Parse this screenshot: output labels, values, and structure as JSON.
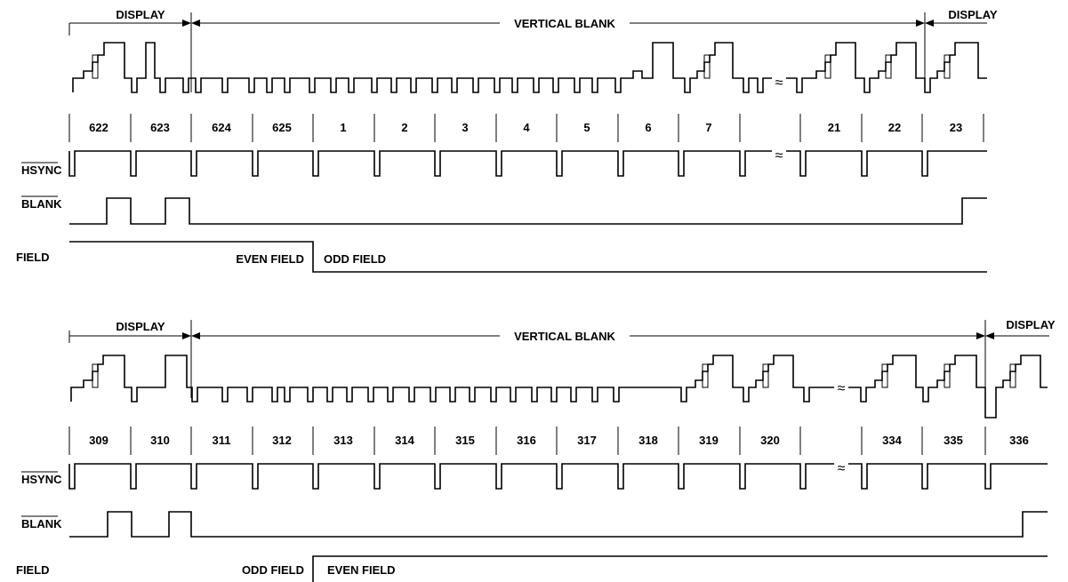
{
  "panels": [
    {
      "id": "top",
      "display_left": "DISPLAY",
      "vertical_blank": "VERTICAL BLANK",
      "display_right": "DISPLAY",
      "line_numbers": [
        "622",
        "623",
        "624",
        "625",
        "1",
        "2",
        "3",
        "4",
        "5",
        "6",
        "7",
        "",
        "21",
        "22",
        "23"
      ],
      "signal_labels": {
        "hsync": "HSYNC",
        "blank": "BLANK",
        "field": "FIELD"
      },
      "field_left": "EVEN FIELD",
      "field_right": "ODD FIELD"
    },
    {
      "id": "bottom",
      "display_left": "DISPLAY",
      "vertical_blank": "VERTICAL BLANK",
      "display_right": "DISPLAY",
      "line_numbers": [
        "309",
        "310",
        "311",
        "312",
        "313",
        "314",
        "315",
        "316",
        "317",
        "318",
        "319",
        "320",
        "",
        "334",
        "335",
        "336"
      ],
      "signal_labels": {
        "hsync": "HSYNC",
        "blank": "BLANK",
        "field": "FIELD"
      },
      "field_left": "ODD FIELD",
      "field_right": "EVEN FIELD"
    }
  ]
}
